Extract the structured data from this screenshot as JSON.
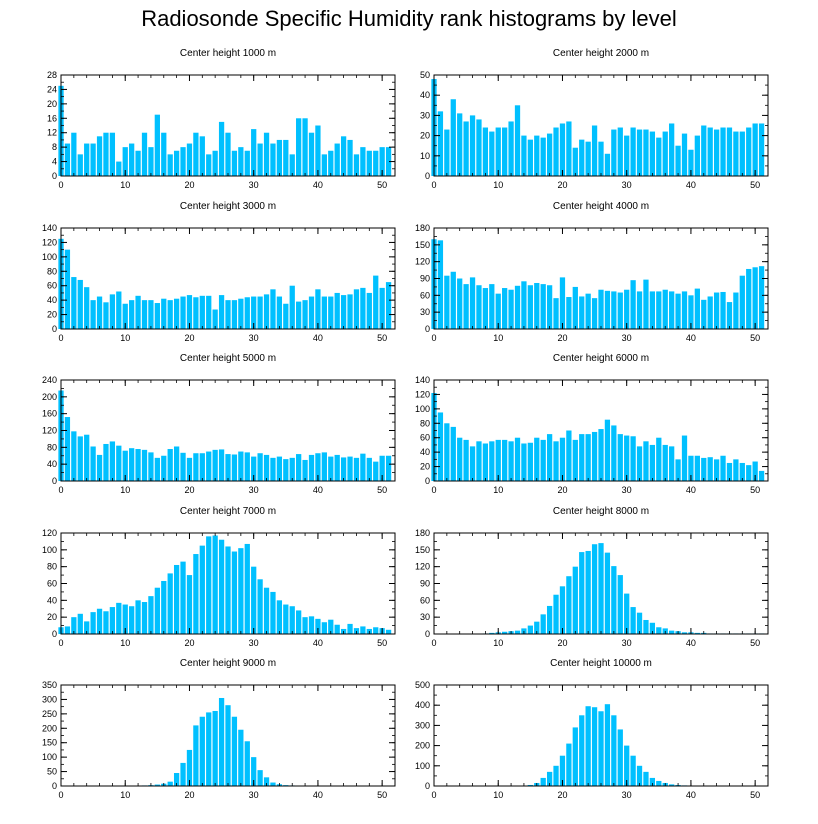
{
  "figure": {
    "title": "Radiosonde Specific Humidity rank histograms by level",
    "bar_color": "#00c0ff"
  },
  "chart_data": [
    {
      "type": "bar",
      "title": "Center height 1000 m",
      "x": [
        0,
        1,
        2,
        3,
        4,
        5,
        6,
        7,
        8,
        9,
        10,
        11,
        12,
        13,
        14,
        15,
        16,
        17,
        18,
        19,
        20,
        21,
        22,
        23,
        24,
        25,
        26,
        27,
        28,
        29,
        30,
        31,
        32,
        33,
        34,
        35,
        36,
        37,
        38,
        39,
        40,
        41,
        42,
        43,
        44,
        45,
        46,
        47,
        48,
        49,
        50,
        51
      ],
      "values": [
        25,
        9,
        12,
        6,
        9,
        9,
        11,
        12,
        12,
        4,
        8,
        9,
        7,
        12,
        8,
        17,
        12,
        6,
        7,
        8,
        9,
        12,
        11,
        6,
        7,
        15,
        12,
        7,
        8,
        7,
        13,
        9,
        12,
        9,
        10,
        10,
        6,
        16,
        16,
        12,
        14,
        6,
        7,
        9,
        11,
        10,
        6,
        8,
        7,
        7,
        8,
        8
      ],
      "xlim": [
        0,
        52
      ],
      "ylim": [
        0,
        28
      ],
      "xticks": [
        0,
        10,
        20,
        30,
        40,
        50
      ],
      "yticks": [
        0,
        4,
        8,
        12,
        16,
        20,
        24,
        28
      ]
    },
    {
      "type": "bar",
      "title": "Center height 2000 m",
      "x": [
        0,
        1,
        2,
        3,
        4,
        5,
        6,
        7,
        8,
        9,
        10,
        11,
        12,
        13,
        14,
        15,
        16,
        17,
        18,
        19,
        20,
        21,
        22,
        23,
        24,
        25,
        26,
        27,
        28,
        29,
        30,
        31,
        32,
        33,
        34,
        35,
        36,
        37,
        38,
        39,
        40,
        41,
        42,
        43,
        44,
        45,
        46,
        47,
        48,
        49,
        50,
        51
      ],
      "values": [
        48,
        32,
        23,
        38,
        31,
        27,
        30,
        28,
        24,
        22,
        24,
        24,
        27,
        35,
        20,
        18,
        20,
        19,
        21,
        24,
        26,
        27,
        14,
        18,
        17,
        25,
        17,
        11,
        23,
        24,
        20,
        24,
        23,
        23,
        22,
        19,
        22,
        26,
        15,
        21,
        13,
        20,
        25,
        24,
        23,
        24,
        24,
        22,
        22,
        24,
        26,
        26
      ],
      "xlim": [
        0,
        52
      ],
      "ylim": [
        0,
        50
      ],
      "xticks": [
        0,
        10,
        20,
        30,
        40,
        50
      ],
      "yticks": [
        0,
        10,
        20,
        30,
        40,
        50
      ]
    },
    {
      "type": "bar",
      "title": "Center height 3000 m",
      "x": [
        0,
        1,
        2,
        3,
        4,
        5,
        6,
        7,
        8,
        9,
        10,
        11,
        12,
        13,
        14,
        15,
        16,
        17,
        18,
        19,
        20,
        21,
        22,
        23,
        24,
        25,
        26,
        27,
        28,
        29,
        30,
        31,
        32,
        33,
        34,
        35,
        36,
        37,
        38,
        39,
        40,
        41,
        42,
        43,
        44,
        45,
        46,
        47,
        48,
        49,
        50,
        51
      ],
      "values": [
        125,
        110,
        72,
        68,
        58,
        40,
        45,
        37,
        48,
        52,
        35,
        40,
        46,
        40,
        40,
        36,
        42,
        40,
        42,
        45,
        47,
        44,
        46,
        46,
        27,
        47,
        40,
        40,
        42,
        44,
        45,
        45,
        48,
        55,
        45,
        35,
        60,
        38,
        40,
        45,
        55,
        45,
        45,
        50,
        47,
        48,
        55,
        57,
        50,
        74,
        57,
        65
      ],
      "xlim": [
        0,
        52
      ],
      "ylim": [
        0,
        140
      ],
      "xticks": [
        0,
        10,
        20,
        30,
        40,
        50
      ],
      "yticks": [
        0,
        20,
        40,
        60,
        80,
        100,
        120,
        140
      ]
    },
    {
      "type": "bar",
      "title": "Center height 4000 m",
      "x": [
        0,
        1,
        2,
        3,
        4,
        5,
        6,
        7,
        8,
        9,
        10,
        11,
        12,
        13,
        14,
        15,
        16,
        17,
        18,
        19,
        20,
        21,
        22,
        23,
        24,
        25,
        26,
        27,
        28,
        29,
        30,
        31,
        32,
        33,
        34,
        35,
        36,
        37,
        38,
        39,
        40,
        41,
        42,
        43,
        44,
        45,
        46,
        47,
        48,
        49,
        50,
        51
      ],
      "values": [
        160,
        158,
        95,
        102,
        90,
        80,
        92,
        78,
        73,
        80,
        63,
        73,
        70,
        77,
        85,
        78,
        82,
        80,
        78,
        55,
        92,
        57,
        75,
        58,
        63,
        55,
        70,
        68,
        67,
        65,
        70,
        87,
        67,
        88,
        67,
        67,
        70,
        67,
        63,
        67,
        60,
        72,
        52,
        58,
        65,
        66,
        48,
        65,
        95,
        107,
        110,
        112
      ],
      "xlim": [
        0,
        52
      ],
      "ylim": [
        0,
        180
      ],
      "xticks": [
        0,
        10,
        20,
        30,
        40,
        50
      ],
      "yticks": [
        0,
        30,
        60,
        90,
        120,
        150,
        180
      ]
    },
    {
      "type": "bar",
      "title": "Center height 5000 m",
      "x": [
        0,
        1,
        2,
        3,
        4,
        5,
        6,
        7,
        8,
        9,
        10,
        11,
        12,
        13,
        14,
        15,
        16,
        17,
        18,
        19,
        20,
        21,
        22,
        23,
        24,
        25,
        26,
        27,
        28,
        29,
        30,
        31,
        32,
        33,
        34,
        35,
        36,
        37,
        38,
        39,
        40,
        41,
        42,
        43,
        44,
        45,
        46,
        47,
        48,
        49,
        50,
        51
      ],
      "values": [
        215,
        152,
        118,
        106,
        110,
        82,
        62,
        88,
        94,
        84,
        72,
        78,
        76,
        74,
        68,
        55,
        60,
        76,
        82,
        67,
        55,
        66,
        66,
        70,
        74,
        75,
        64,
        63,
        70,
        68,
        58,
        66,
        62,
        55,
        58,
        52,
        55,
        64,
        50,
        62,
        66,
        68,
        58,
        62,
        56,
        58,
        55,
        65,
        55,
        46,
        60,
        60
      ],
      "xlim": [
        0,
        52
      ],
      "ylim": [
        0,
        240
      ],
      "xticks": [
        0,
        10,
        20,
        30,
        40,
        50
      ],
      "yticks": [
        0,
        40,
        80,
        120,
        160,
        200,
        240
      ]
    },
    {
      "type": "bar",
      "title": "Center height 6000 m",
      "x": [
        0,
        1,
        2,
        3,
        4,
        5,
        6,
        7,
        8,
        9,
        10,
        11,
        12,
        13,
        14,
        15,
        16,
        17,
        18,
        19,
        20,
        21,
        22,
        23,
        24,
        25,
        26,
        27,
        28,
        29,
        30,
        31,
        32,
        33,
        34,
        35,
        36,
        37,
        38,
        39,
        40,
        41,
        42,
        43,
        44,
        45,
        46,
        47,
        48,
        49,
        50,
        51
      ],
      "values": [
        122,
        95,
        80,
        75,
        60,
        57,
        48,
        55,
        52,
        55,
        57,
        57,
        55,
        60,
        52,
        53,
        60,
        57,
        65,
        55,
        60,
        70,
        57,
        65,
        65,
        68,
        72,
        85,
        77,
        65,
        63,
        62,
        48,
        55,
        50,
        60,
        50,
        48,
        30,
        63,
        35,
        35,
        32,
        33,
        30,
        35,
        25,
        30,
        25,
        22,
        27,
        14
      ],
      "xlim": [
        0,
        52
      ],
      "ylim": [
        0,
        140
      ],
      "xticks": [
        0,
        10,
        20,
        30,
        40,
        50
      ],
      "yticks": [
        0,
        20,
        40,
        60,
        80,
        100,
        120,
        140
      ]
    },
    {
      "type": "bar",
      "title": "Center height 7000 m",
      "x": [
        0,
        1,
        2,
        3,
        4,
        5,
        6,
        7,
        8,
        9,
        10,
        11,
        12,
        13,
        14,
        15,
        16,
        17,
        18,
        19,
        20,
        21,
        22,
        23,
        24,
        25,
        26,
        27,
        28,
        29,
        30,
        31,
        32,
        33,
        34,
        35,
        36,
        37,
        38,
        39,
        40,
        41,
        42,
        43,
        44,
        45,
        46,
        47,
        48,
        49,
        50,
        51
      ],
      "values": [
        8,
        9,
        20,
        24,
        15,
        26,
        30,
        27,
        32,
        37,
        35,
        33,
        40,
        38,
        45,
        55,
        63,
        72,
        82,
        86,
        70,
        95,
        105,
        116,
        117,
        112,
        104,
        98,
        102,
        107,
        80,
        65,
        55,
        50,
        40,
        35,
        33,
        28,
        20,
        21,
        18,
        14,
        17,
        11,
        6,
        12,
        7,
        9,
        6,
        8,
        7,
        5
      ],
      "xlim": [
        0,
        52
      ],
      "ylim": [
        0,
        120
      ],
      "xticks": [
        0,
        10,
        20,
        30,
        40,
        50
      ],
      "yticks": [
        0,
        20,
        40,
        60,
        80,
        100,
        120
      ]
    },
    {
      "type": "bar",
      "title": "Center height 8000 m",
      "x": [
        0,
        1,
        2,
        3,
        4,
        5,
        6,
        7,
        8,
        9,
        10,
        11,
        12,
        13,
        14,
        15,
        16,
        17,
        18,
        19,
        20,
        21,
        22,
        23,
        24,
        25,
        26,
        27,
        28,
        29,
        30,
        31,
        32,
        33,
        34,
        35,
        36,
        37,
        38,
        39,
        40,
        41,
        42,
        43,
        44,
        45,
        46,
        47,
        48,
        49,
        50,
        51
      ],
      "values": [
        0,
        0,
        0,
        0,
        0,
        0,
        0,
        0,
        1,
        2,
        3,
        4,
        5,
        6,
        10,
        15,
        22,
        35,
        50,
        70,
        85,
        103,
        120,
        146,
        148,
        160,
        162,
        145,
        121,
        105,
        72,
        48,
        38,
        25,
        20,
        12,
        10,
        6,
        5,
        3,
        3,
        2,
        2,
        1,
        1,
        1,
        1,
        1,
        1,
        1,
        1,
        1
      ],
      "xlim": [
        0,
        52
      ],
      "ylim": [
        0,
        180
      ],
      "xticks": [
        0,
        10,
        20,
        30,
        40,
        50
      ],
      "yticks": [
        0,
        30,
        60,
        90,
        120,
        150,
        180
      ]
    },
    {
      "type": "bar",
      "title": "Center height 9000 m",
      "x": [
        0,
        1,
        2,
        3,
        4,
        5,
        6,
        7,
        8,
        9,
        10,
        11,
        12,
        13,
        14,
        15,
        16,
        17,
        18,
        19,
        20,
        21,
        22,
        23,
        24,
        25,
        26,
        27,
        28,
        29,
        30,
        31,
        32,
        33,
        34,
        35,
        36,
        37,
        38,
        39,
        40,
        41,
        42,
        43,
        44,
        45,
        46,
        47,
        48,
        49,
        50,
        51
      ],
      "values": [
        0,
        0,
        0,
        0,
        0,
        0,
        0,
        0,
        0,
        0,
        0,
        0,
        0,
        2,
        3,
        5,
        8,
        15,
        45,
        80,
        125,
        210,
        240,
        255,
        260,
        305,
        280,
        240,
        195,
        155,
        100,
        55,
        30,
        12,
        6,
        3,
        2,
        1,
        1,
        0,
        0,
        0,
        0,
        0,
        0,
        0,
        0,
        1,
        0,
        0,
        0,
        0
      ],
      "xlim": [
        0,
        52
      ],
      "ylim": [
        0,
        350
      ],
      "xticks": [
        0,
        10,
        20,
        30,
        40,
        50
      ],
      "yticks": [
        0,
        50,
        100,
        150,
        200,
        250,
        300,
        350
      ]
    },
    {
      "type": "bar",
      "title": "Center height 10000 m",
      "x": [
        0,
        1,
        2,
        3,
        4,
        5,
        6,
        7,
        8,
        9,
        10,
        11,
        12,
        13,
        14,
        15,
        16,
        17,
        18,
        19,
        20,
        21,
        22,
        23,
        24,
        25,
        26,
        27,
        28,
        29,
        30,
        31,
        32,
        33,
        34,
        35,
        36,
        37,
        38,
        39,
        40,
        41,
        42,
        43,
        44,
        45,
        46,
        47,
        48,
        49,
        50,
        51
      ],
      "values": [
        0,
        0,
        0,
        0,
        0,
        0,
        0,
        0,
        0,
        0,
        0,
        0,
        0,
        0,
        0,
        5,
        15,
        40,
        70,
        100,
        150,
        210,
        290,
        350,
        395,
        390,
        370,
        405,
        350,
        280,
        200,
        150,
        100,
        70,
        40,
        25,
        15,
        8,
        5,
        3,
        2,
        1,
        0,
        0,
        0,
        0,
        0,
        0,
        0,
        0,
        0,
        0
      ],
      "xlim": [
        0,
        52
      ],
      "ylim": [
        0,
        500
      ],
      "xticks": [
        0,
        10,
        20,
        30,
        40,
        50
      ],
      "yticks": [
        0,
        100,
        200,
        300,
        400,
        500
      ]
    }
  ]
}
